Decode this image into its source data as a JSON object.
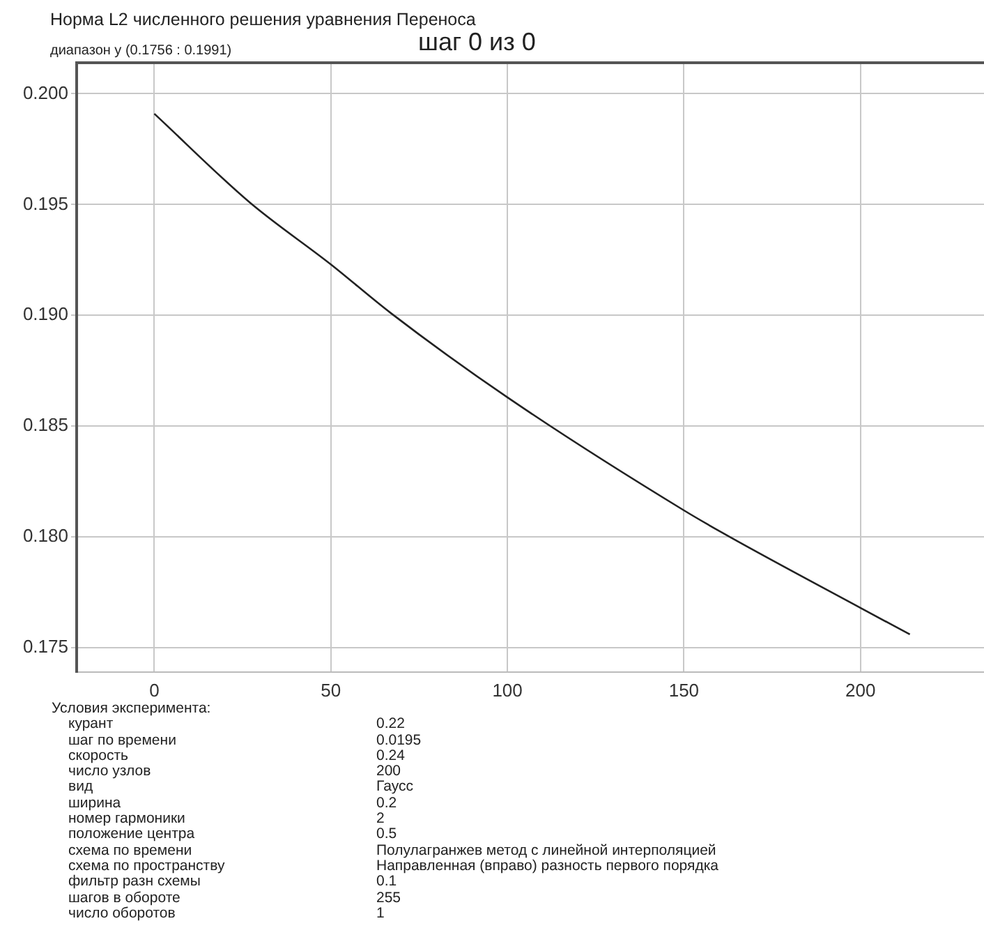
{
  "chart_data": {
    "type": "line",
    "title": "Норма L2 численного решения уравнения Переноса",
    "subtitle": "диапазон y (0.1756 : 0.1991)",
    "annotations": [
      "шаг 0 из 0",
      "Условия эксперимента:",
      "курант",
      "0.22",
      "шаг по времени",
      "0.0195",
      "скорость",
      "0.24",
      "число узлов",
      "200",
      "вид",
      "Гаусс",
      "ширина",
      "0.2",
      "номер гармоники",
      "2",
      "положение центра",
      "0.5",
      "схема по времени",
      "Полулагранжев метод с линейной интерполяцией",
      "схема по пространству",
      "Направленная (вправо) разность первого порядка",
      "фильтр разн схемы",
      "0.1",
      "шагов в обороте",
      "255",
      "число оборотов",
      "1"
    ],
    "x": [
      0,
      27,
      50,
      67,
      100,
      150,
      163,
      200,
      214
    ],
    "series": [
      {
        "color": "#222222",
        "values": [
          0.1991,
          0.1951,
          0.1923,
          0.1901,
          0.1863,
          0.1812,
          0.18,
          0.1768,
          0.1756
        ]
      }
    ],
    "xlim": [
      -22,
      235
    ],
    "xticks": [
      0,
      50,
      100,
      150,
      200
    ],
    "ylim": [
      0.1739,
      0.2014
    ],
    "yticks": [
      {
        "value": 0.175,
        "label": "0.175"
      },
      {
        "value": 0.18,
        "label": "0.180"
      },
      {
        "value": 0.185,
        "label": "0.185"
      },
      {
        "value": 0.19,
        "label": "0.190"
      },
      {
        "value": 0.195,
        "label": "0.195"
      },
      {
        "value": 0.2,
        "label": "0.200"
      }
    ],
    "grid": true,
    "legend": false,
    "marker": "none",
    "line_style": "solid"
  }
}
